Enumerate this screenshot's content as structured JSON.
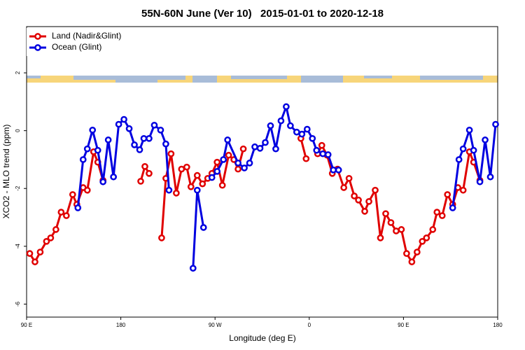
{
  "chart_data": {
    "type": "line",
    "title": "55N-60N June (Ver 10)   2015-01-01 to 2020-12-18",
    "x_label": "Longitude (deg E)",
    "y_label": "XCO2 - MLO trend (ppm)",
    "xlim": [
      90,
      540
    ],
    "ylim": [
      -6.45,
      3.6
    ],
    "xticks": [
      {
        "value": 90,
        "label": "90 E"
      },
      180,
      {
        "value": 270,
        "label": "90 W"
      },
      {
        "value": 360,
        "label": "0"
      },
      {
        "value": 450,
        "label": "90 E"
      },
      {
        "value": 540,
        "label": "180"
      }
    ],
    "yticks": [
      -6,
      -4,
      -2,
      0,
      2
    ],
    "legend": "top-left",
    "series": [
      {
        "name": "Land (Nadir&Glint)",
        "color": "#e00000",
        "x": [
          93,
          98,
          103,
          109,
          113,
          118,
          123,
          128,
          134,
          138,
          144,
          148,
          154,
          158,
          163,
          180,
          199,
          203,
          207,
          213,
          219,
          223,
          228,
          233,
          238,
          243,
          247,
          253,
          258,
          263,
          267,
          272,
          277,
          283,
          288,
          292,
          297,
          330,
          352,
          357,
          362,
          368,
          372,
          377,
          382,
          387,
          393,
          398,
          403,
          407,
          413,
          417,
          423,
          428,
          433,
          438,
          443,
          448,
          453,
          458,
          463,
          468,
          472,
          478,
          482,
          487,
          492,
          497,
          502,
          507,
          513,
          517,
          523
        ],
        "values": [
          -4.25,
          -4.54,
          -4.2,
          -3.83,
          -3.71,
          -3.42,
          -2.82,
          -2.94,
          -2.21,
          -2.55,
          -1.97,
          -2.06,
          -0.73,
          -1.09,
          -1.72,
          null,
          -1.75,
          -1.24,
          -1.48,
          null,
          -3.71,
          -1.65,
          -0.8,
          -2.16,
          -1.33,
          -1.26,
          -1.94,
          -1.55,
          -1.84,
          -1.65,
          -1.48,
          -1.09,
          -1.89,
          -0.85,
          -1.0,
          -1.33,
          -0.63,
          null,
          -0.27,
          -0.97,
          null,
          -0.8,
          -0.51,
          -0.85,
          -1.48,
          -1.33,
          -1.97,
          -1.65,
          -2.26,
          -2.4,
          -2.79,
          -2.45,
          -2.06,
          -3.71,
          -2.87,
          -3.18,
          -3.47,
          -3.42,
          -4.25,
          -4.54,
          -4.2,
          -3.83,
          -3.71,
          -3.42,
          -2.82,
          -2.94,
          -2.21,
          -2.55,
          -1.97,
          -2.06,
          -0.73,
          -1.09,
          -1.72
        ]
      },
      {
        "name": "Ocean (Glint)",
        "color": "#0000e0",
        "x": [
          139,
          144,
          148,
          153,
          158,
          163,
          168,
          173,
          178,
          183,
          188,
          193,
          198,
          202,
          207,
          212,
          218,
          223,
          226,
          237,
          249,
          253,
          259,
          263,
          267,
          272,
          278,
          282,
          292,
          298,
          303,
          308,
          313,
          318,
          323,
          328,
          333,
          338,
          342,
          348,
          353,
          358,
          363,
          367,
          373,
          378,
          383,
          388,
          450,
          497,
          503,
          507,
          513,
          517,
          523,
          528,
          533,
          538
        ],
        "values": [
          -2.67,
          -1.0,
          -0.63,
          0.02,
          -0.68,
          -1.77,
          -0.32,
          -1.6,
          0.22,
          0.39,
          0.07,
          -0.49,
          -0.66,
          -0.27,
          -0.27,
          0.19,
          0.02,
          -0.46,
          -2.06,
          null,
          -4.76,
          -2.06,
          -3.35,
          null,
          -1.62,
          -1.41,
          -1.0,
          -0.32,
          -1.12,
          -1.29,
          -1.12,
          -0.56,
          -0.61,
          -0.41,
          0.17,
          -0.63,
          0.34,
          0.83,
          0.17,
          -0.05,
          -0.12,
          0.05,
          -0.27,
          -0.68,
          -0.8,
          -0.83,
          -1.36,
          -1.36,
          null,
          -2.67,
          -1.0,
          -0.63,
          0.02,
          -0.68,
          -1.77,
          -0.32,
          -1.6,
          0.22
        ]
      }
    ]
  }
}
